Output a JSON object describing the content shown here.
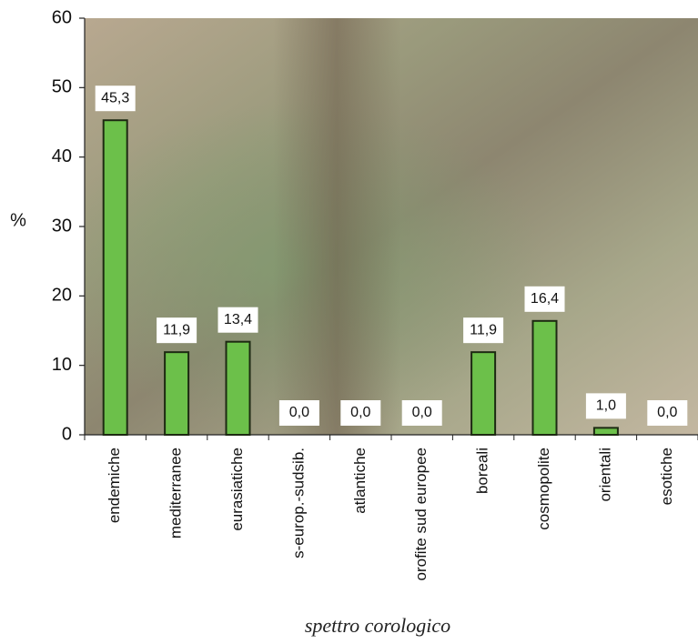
{
  "chart_data": {
    "type": "bar",
    "title": "spettro corologico",
    "y_label": "%",
    "categories": [
      "endemiche",
      "mediterranee",
      "eurasiatiche",
      "s-europ.-sudsib.",
      "atlantiche",
      "orofite sud europee",
      "boreali",
      "cosmopolite",
      "orientali",
      "esotiche"
    ],
    "values": [
      45.3,
      11.9,
      13.4,
      0.0,
      0.0,
      0.0,
      11.9,
      16.4,
      1.0,
      0.0
    ],
    "value_labels": [
      "45,3",
      "11,9",
      "13,4",
      "0,0",
      "0,0",
      "0,0",
      "11,9",
      "16,4",
      "1,0",
      "0,0"
    ],
    "color": "#6cc04a",
    "ylim": [
      0,
      60
    ],
    "yticks": [
      0,
      10,
      20,
      30,
      40,
      50,
      60
    ]
  }
}
